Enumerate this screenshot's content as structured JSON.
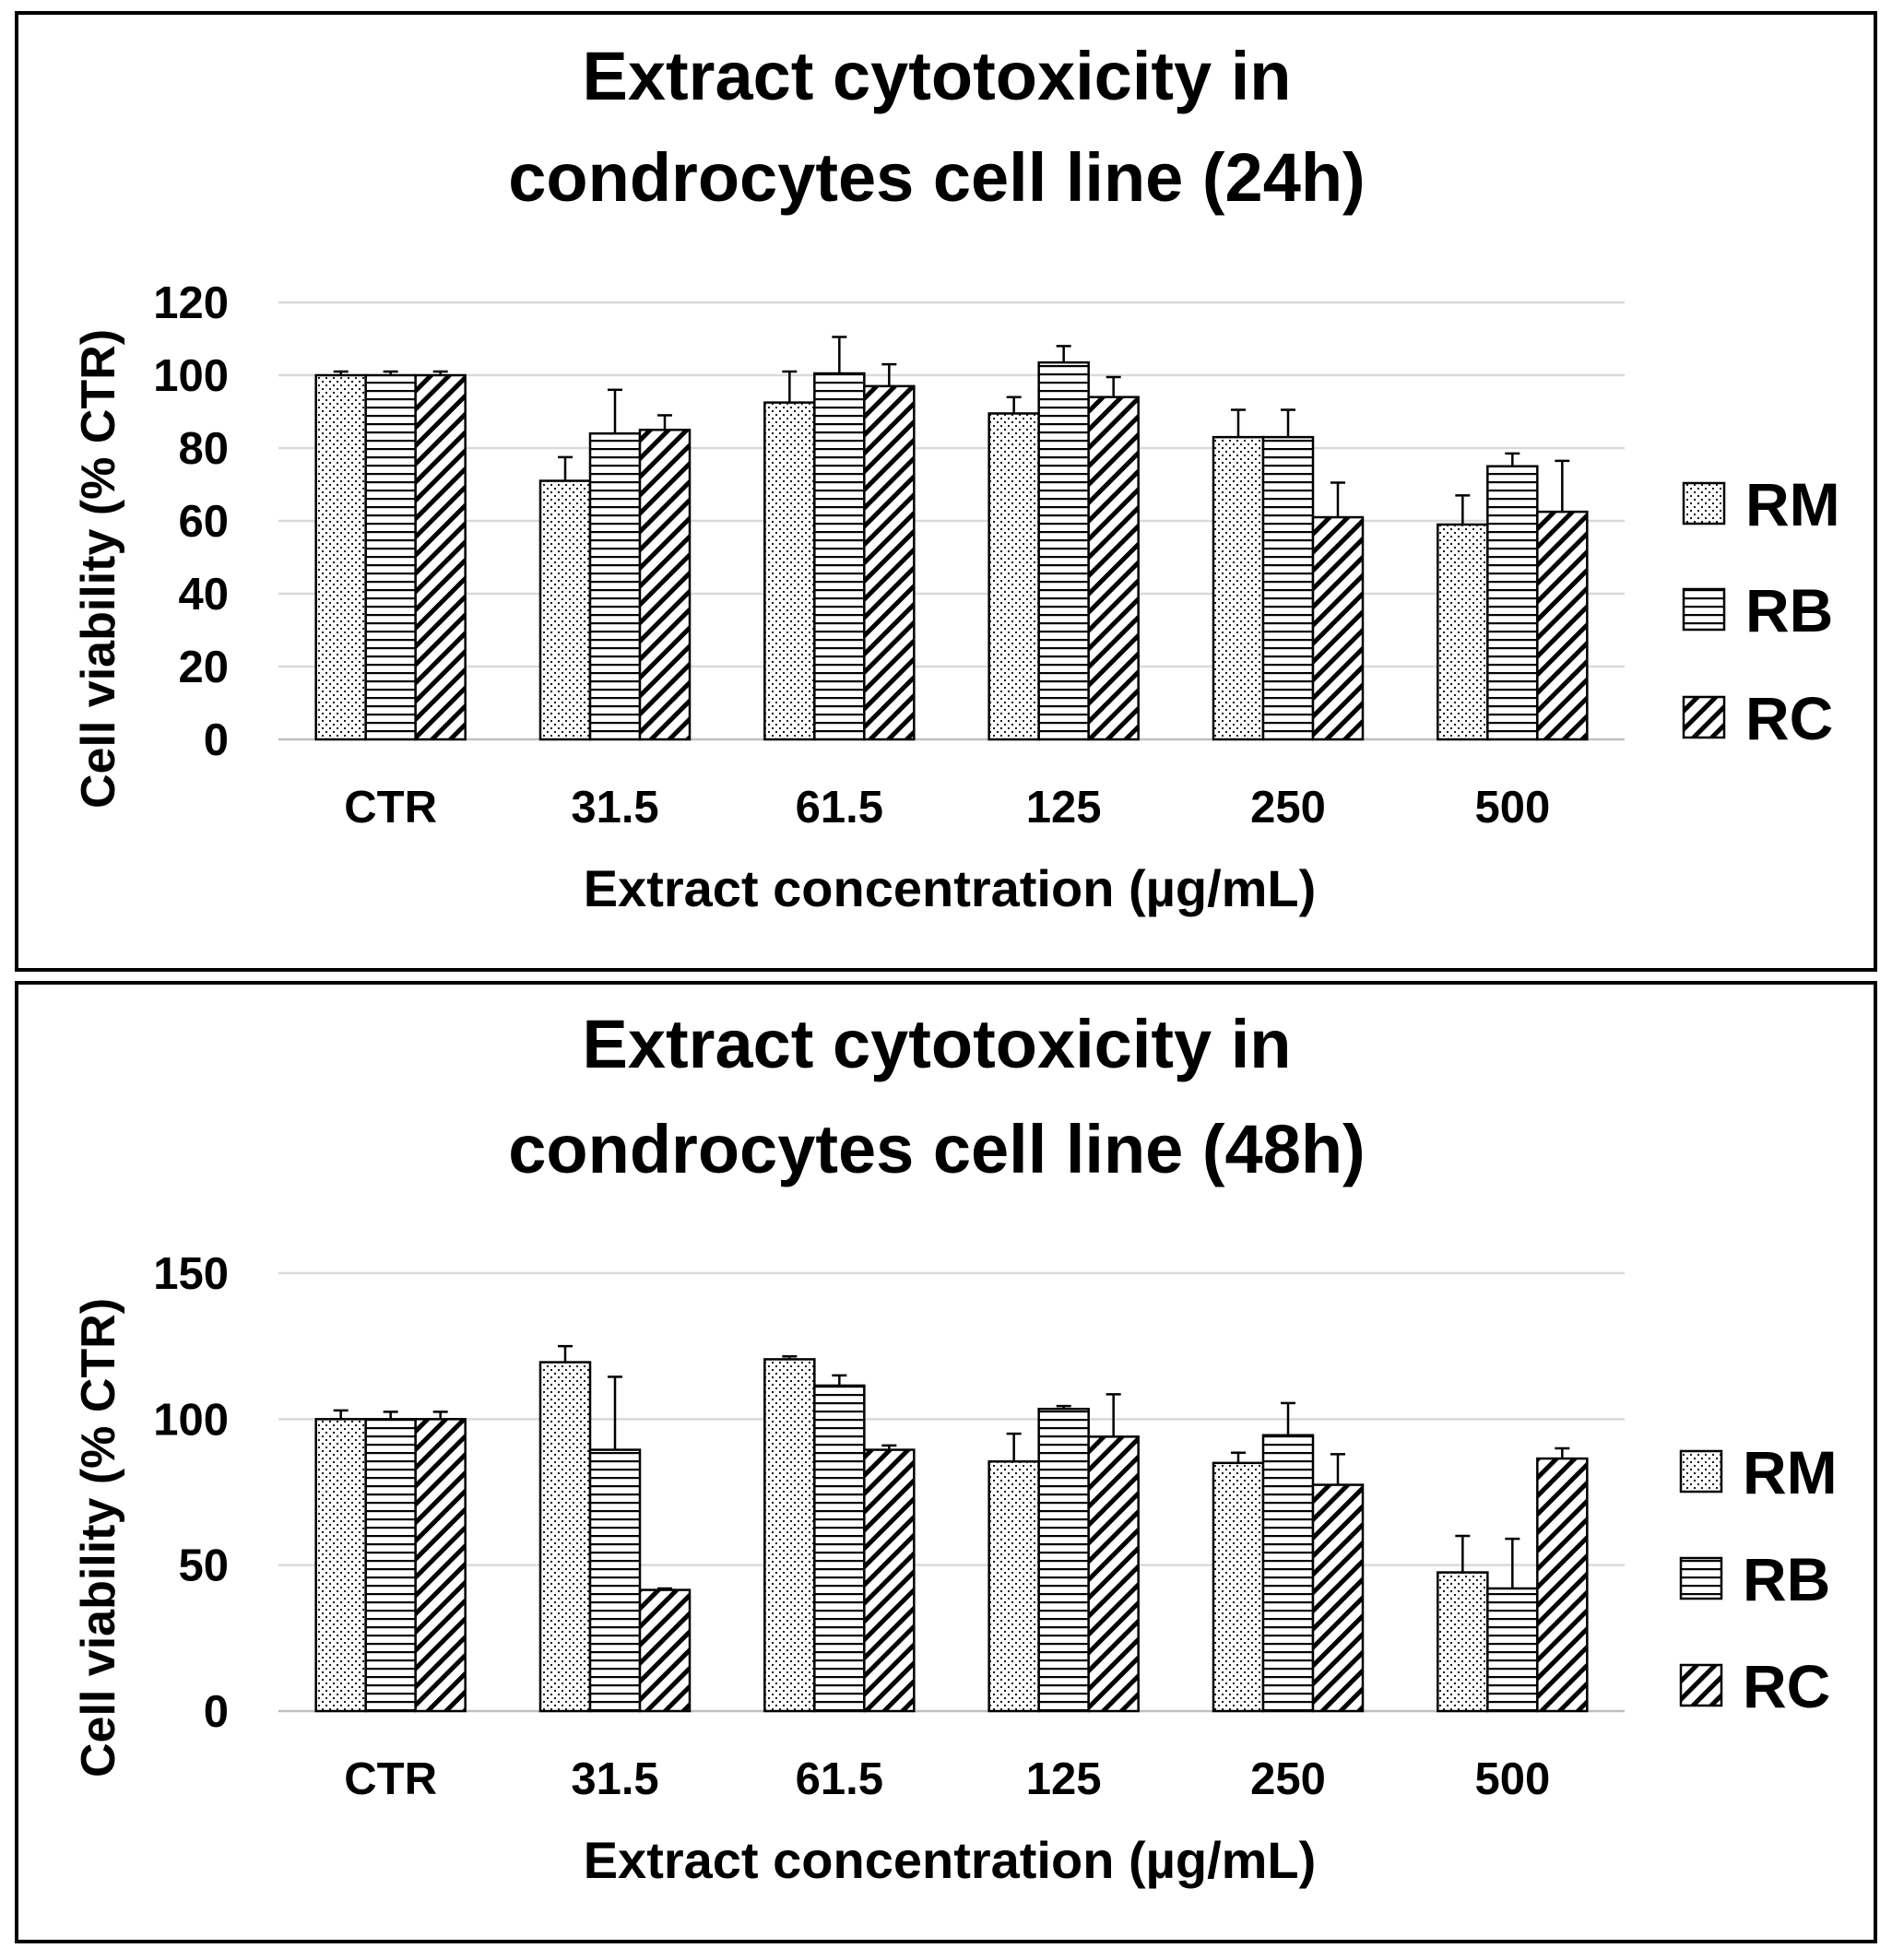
{
  "chart_data": [
    {
      "type": "bar",
      "title_lines": [
        "Extract cytotoxicity in",
        "condrocytes cell line (24h)"
      ],
      "xlabel": "Extract concentration (µg/mL)",
      "ylabel": "Cell viability (% CTR)",
      "ylim": [
        0,
        120
      ],
      "yticks": [
        0,
        20,
        40,
        60,
        80,
        100,
        120
      ],
      "grid": true,
      "legend_position": "right",
      "categories": [
        "CTR",
        "31.5",
        "61.5",
        "125",
        "250",
        "500"
      ],
      "series": [
        {
          "name": "RM",
          "pattern": "dots",
          "values": [
            100,
            71,
            92.5,
            89.5,
            83,
            59
          ],
          "errors": [
            1,
            6.5,
            8.5,
            4.5,
            7.5,
            8
          ]
        },
        {
          "name": "RB",
          "pattern": "horizontal",
          "values": [
            100,
            84,
            100.5,
            103.5,
            83,
            75
          ],
          "errors": [
            1,
            12,
            10,
            4.5,
            7.5,
            3.5
          ]
        },
        {
          "name": "RC",
          "pattern": "diagonal",
          "values": [
            100,
            85,
            97,
            94,
            61,
            62.5
          ],
          "errors": [
            1,
            4,
            6,
            5.5,
            9.5,
            14
          ]
        }
      ]
    },
    {
      "type": "bar",
      "title_lines": [
        "Extract cytotoxicity in",
        "condrocytes cell line (48h)"
      ],
      "xlabel": "Extract concentration (µg/mL)",
      "ylabel": "Cell viability (% CTR)",
      "ylim": [
        0,
        150
      ],
      "yticks": [
        0,
        50,
        100,
        150
      ],
      "grid": true,
      "legend_position": "right",
      "categories": [
        "CTR",
        "31.5",
        "61.5",
        "125",
        "250",
        "500"
      ],
      "series": [
        {
          "name": "RM",
          "pattern": "dots",
          "values": [
            100,
            119.5,
            120.5,
            85.5,
            85,
            47.5
          ],
          "errors": [
            3,
            5.5,
            1,
            9.5,
            3.5,
            12.5
          ]
        },
        {
          "name": "RB",
          "pattern": "horizontal",
          "values": [
            100,
            89.5,
            111.5,
            103.5,
            94.5,
            42
          ],
          "errors": [
            2.5,
            25,
            3.5,
            1,
            11,
            17
          ]
        },
        {
          "name": "RC",
          "pattern": "diagonal",
          "values": [
            100,
            41.5,
            89.5,
            94,
            77.5,
            86.5
          ],
          "errors": [
            2.5,
            0.5,
            1.5,
            14.5,
            10.5,
            3.5
          ]
        }
      ]
    }
  ]
}
